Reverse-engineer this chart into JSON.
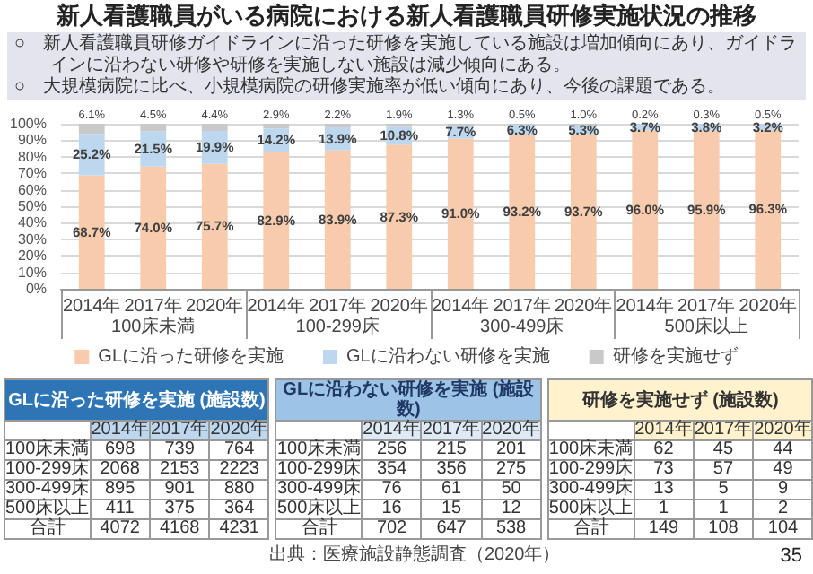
{
  "chart_data": [
    {
      "type": "bar",
      "stacked": true,
      "title": "新人看護職員がいる病院における新人看護職員研修実施状況の推移",
      "annotations": [
        "○　新人看護職員研修ガイドラインに沿った研修を実施している施設は増加傾向にあり、ガイドラインに沿わない研修や研修を実施しない施設は減少傾向にある。",
        "○　大規模病院に比べ、小規模病院の研修実施率が低い傾向にあり、今後の課題である。",
        "100床未満",
        "100-299床",
        "300-499床",
        "500床以上",
        "出典：医療施設静態調査（2020年）",
        "35"
      ],
      "categories": [
        "2014年",
        "2017年",
        "2020年",
        "2014年",
        "2017年",
        "2020年",
        "2014年",
        "2017年",
        "2020年",
        "2014年",
        "2017年",
        "2020年"
      ],
      "series": [
        {
          "name": "GLに沿った研修を実施",
          "color": "#f8cbad",
          "values": [
            68.7,
            74.0,
            75.7,
            82.9,
            83.9,
            87.3,
            91.0,
            93.2,
            93.7,
            96.0,
            95.9,
            96.3
          ],
          "value_labels": [
            "68.7%",
            "74.0%",
            "75.7%",
            "82.9%",
            "83.9%",
            "87.3%",
            "91.0%",
            "93.2%",
            "93.7%",
            "96.0%",
            "95.9%",
            "96.3%"
          ]
        },
        {
          "name": "GLに沿わない研修を実施",
          "color": "#bdd7ee",
          "values": [
            25.2,
            21.5,
            19.9,
            14.2,
            13.9,
            10.8,
            7.7,
            6.3,
            5.3,
            3.7,
            3.8,
            3.2
          ],
          "value_labels": [
            "25.2%",
            "21.5%",
            "19.9%",
            "14.2%",
            "13.9%",
            "10.8%",
            "7.7%",
            "6.3%",
            "5.3%",
            "3.7%",
            "3.8%",
            "3.2%"
          ]
        },
        {
          "name": "研修を実施せず",
          "color": "#c9c9c9",
          "values": [
            6.1,
            4.5,
            4.4,
            2.9,
            2.2,
            1.9,
            1.3,
            0.5,
            1.0,
            0.2,
            0.3,
            0.5
          ],
          "value_labels": [
            "6.1%",
            "4.5%",
            "4.4%",
            "2.9%",
            "2.2%",
            "1.9%",
            "1.3%",
            "0.5%",
            "1.0%",
            "0.2%",
            "0.3%",
            "0.5%"
          ]
        }
      ],
      "ylim": [
        0,
        100
      ],
      "yticks": [
        {
          "value": 0,
          "label": "0%"
        },
        {
          "value": 10,
          "label": "10%"
        },
        {
          "value": 20,
          "label": "20%"
        },
        {
          "value": 30,
          "label": "30%"
        },
        {
          "value": 40,
          "label": "40%"
        },
        {
          "value": 50,
          "label": "50%"
        },
        {
          "value": 60,
          "label": "60%"
        },
        {
          "value": 70,
          "label": "70%"
        },
        {
          "value": 80,
          "label": "80%"
        },
        {
          "value": 90,
          "label": "90%"
        },
        {
          "value": 100,
          "label": "100%"
        }
      ],
      "grid": "y",
      "legend": "bottom"
    },
    {
      "type": "heatmap",
      "data_labels": true,
      "title": "GLに沿った研修を実施",
      "subtitle": "(施設数)",
      "categories": [
        "2014年",
        "2017年",
        "2020年"
      ],
      "y_categories": [
        "100床未満",
        "100-299床",
        "300-499床",
        "500床以上",
        "合計"
      ],
      "cells": [
        [
          698,
          739,
          764
        ],
        [
          2068,
          2153,
          2223
        ],
        [
          895,
          901,
          880
        ],
        [
          411,
          375,
          364
        ],
        [
          4072,
          4168,
          4231
        ]
      ]
    },
    {
      "type": "heatmap",
      "data_labels": true,
      "title": "GLに沿わない研修を実施",
      "subtitle": "(施設数)",
      "categories": [
        "2014年",
        "2017年",
        "2020年"
      ],
      "y_categories": [
        "100床未満",
        "100-299床",
        "300-499床",
        "500床以上",
        "合計"
      ],
      "cells": [
        [
          256,
          215,
          201
        ],
        [
          354,
          356,
          275
        ],
        [
          76,
          61,
          50
        ],
        [
          16,
          15,
          12
        ],
        [
          702,
          647,
          538
        ]
      ]
    },
    {
      "type": "heatmap",
      "data_labels": true,
      "title": "研修を実施せず",
      "subtitle": "(施設数)",
      "categories": [
        "2014年",
        "2017年",
        "2020年"
      ],
      "y_categories": [
        "100床未満",
        "100-299床",
        "300-499床",
        "500床以上",
        "合計"
      ],
      "cells": [
        [
          62,
          45,
          44
        ],
        [
          73,
          57,
          49
        ],
        [
          13,
          5,
          9
        ],
        [
          1,
          1,
          2
        ],
        [
          149,
          108,
          104
        ]
      ]
    }
  ]
}
